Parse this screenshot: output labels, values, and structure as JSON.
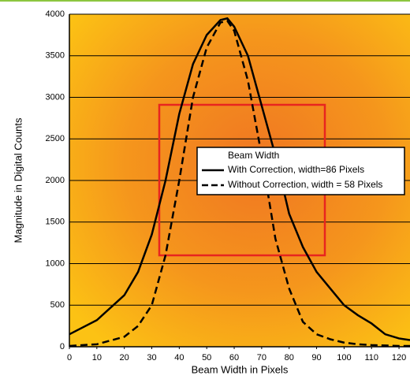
{
  "chart_data": {
    "type": "line",
    "x_label": "Beam Width in Pixels",
    "y_label": "Magnitude in Digital Counts",
    "legend_title": "Beam Width",
    "x": [
      0,
      10,
      20,
      25,
      30,
      35,
      40,
      45,
      50,
      55,
      57.5,
      60,
      65,
      70,
      75,
      80,
      85,
      90,
      95,
      100,
      105,
      110,
      115,
      120,
      124
    ],
    "series": [
      {
        "name": "With Correction, width=86 Pixels",
        "color": "#000000",
        "line_style": "solid",
        "values": [
          150,
          320,
          620,
          900,
          1350,
          2000,
          2800,
          3400,
          3750,
          3930,
          3950,
          3850,
          3500,
          2900,
          2300,
          1600,
          1200,
          900,
          700,
          500,
          380,
          280,
          150,
          100,
          80
        ]
      },
      {
        "name": "Without Correction, width = 58 Pixels",
        "color": "#000000",
        "line_style": "dashed",
        "values": [
          10,
          30,
          120,
          250,
          500,
          1100,
          2000,
          3000,
          3600,
          3900,
          3920,
          3800,
          3200,
          2300,
          1300,
          700,
          300,
          150,
          90,
          50,
          30,
          20,
          15,
          10,
          10
        ]
      }
    ],
    "xlim": [
      0,
      124
    ],
    "ylim": [
      0,
      4000
    ],
    "xticks": [
      0,
      10,
      20,
      30,
      40,
      50,
      60,
      70,
      80,
      90,
      100,
      110,
      120
    ],
    "yticks": [
      0,
      500,
      1000,
      1500,
      2000,
      2500,
      3000,
      3500,
      4000
    ],
    "grid": true
  }
}
